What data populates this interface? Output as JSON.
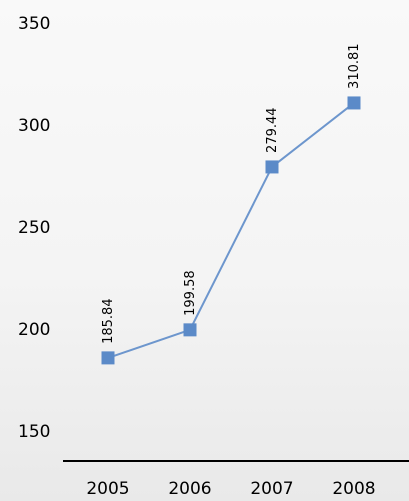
{
  "chart_data": {
    "type": "line",
    "categories": [
      "2005",
      "2006",
      "2007",
      "2008"
    ],
    "series": [
      {
        "values": [
          185.84,
          199.58,
          279.44,
          310.81
        ]
      }
    ],
    "data_labels": [
      "185.84",
      "199.58",
      "279.44",
      "310.81"
    ],
    "y_ticks": [
      150,
      200,
      250,
      300,
      350
    ],
    "ylim": [
      140,
      350
    ],
    "title": "",
    "xlabel": "",
    "ylabel": "",
    "grid": false,
    "legend": "none",
    "colors": {
      "line": "#6d96cd",
      "marker": "#5b8ac8",
      "axis": "#000000"
    }
  }
}
